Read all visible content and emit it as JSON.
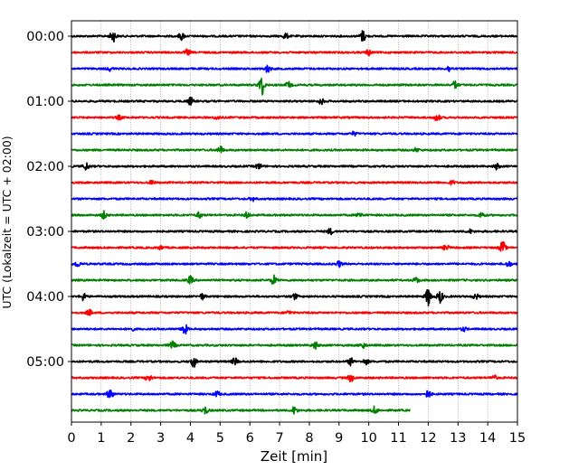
{
  "chart_data": {
    "type": "line",
    "title": "",
    "xlabel": "Zeit  [min]",
    "ylabel": "UTC (Lokalzeit = UTC + 02:00)",
    "xlim": [
      0,
      15
    ],
    "x_ticks": [
      0,
      1,
      2,
      3,
      4,
      5,
      6,
      7,
      8,
      9,
      10,
      11,
      12,
      13,
      14,
      15
    ],
    "y_tick_labels": [
      "00:00",
      "01:00",
      "02:00",
      "03:00",
      "04:00",
      "05:00"
    ],
    "trace_interval_min": 15,
    "grid": "vertical-dotted",
    "colors": [
      "#000000",
      "#ff0000",
      "#0000ff",
      "#008000"
    ],
    "series": [
      {
        "start": "00:00",
        "color": "#000000",
        "end_min": 15,
        "events": [
          {
            "t": 1.4,
            "a": 6
          },
          {
            "t": 3.7,
            "a": 4
          },
          {
            "t": 7.2,
            "a": 3
          },
          {
            "t": 9.8,
            "a": 6
          }
        ]
      },
      {
        "start": "00:15",
        "color": "#ff0000",
        "end_min": 15,
        "events": [
          {
            "t": 3.9,
            "a": 3
          },
          {
            "t": 10.0,
            "a": 3
          }
        ]
      },
      {
        "start": "00:30",
        "color": "#0000ff",
        "end_min": 15,
        "events": [
          {
            "t": 1.3,
            "a": 2
          },
          {
            "t": 6.6,
            "a": 4
          },
          {
            "t": 12.7,
            "a": 3
          }
        ]
      },
      {
        "start": "00:45",
        "color": "#008000",
        "end_min": 15,
        "events": [
          {
            "t": 6.4,
            "a": 11
          },
          {
            "t": 7.3,
            "a": 3
          },
          {
            "t": 12.9,
            "a": 4
          }
        ]
      },
      {
        "start": "01:00",
        "color": "#000000",
        "end_min": 15,
        "events": [
          {
            "t": 4.0,
            "a": 4
          },
          {
            "t": 8.4,
            "a": 3
          }
        ]
      },
      {
        "start": "01:15",
        "color": "#ff0000",
        "end_min": 15,
        "events": [
          {
            "t": 1.6,
            "a": 2
          },
          {
            "t": 4.9,
            "a": 2
          },
          {
            "t": 12.3,
            "a": 4
          }
        ]
      },
      {
        "start": "01:30",
        "color": "#0000ff",
        "end_min": 15,
        "events": [
          {
            "t": 9.5,
            "a": 2
          }
        ]
      },
      {
        "start": "01:45",
        "color": "#008000",
        "end_min": 15,
        "events": [
          {
            "t": 5.0,
            "a": 4
          },
          {
            "t": 11.6,
            "a": 2
          }
        ]
      },
      {
        "start": "02:00",
        "color": "#000000",
        "end_min": 15,
        "events": [
          {
            "t": 0.5,
            "a": 4
          },
          {
            "t": 6.3,
            "a": 3
          },
          {
            "t": 14.3,
            "a": 3
          }
        ]
      },
      {
        "start": "02:15",
        "color": "#ff0000",
        "end_min": 15,
        "events": [
          {
            "t": 2.7,
            "a": 2
          },
          {
            "t": 12.8,
            "a": 2
          }
        ]
      },
      {
        "start": "02:30",
        "color": "#0000ff",
        "end_min": 15,
        "events": [
          {
            "t": 6.1,
            "a": 2
          }
        ]
      },
      {
        "start": "02:45",
        "color": "#008000",
        "end_min": 15,
        "events": [
          {
            "t": 1.1,
            "a": 4
          },
          {
            "t": 4.3,
            "a": 3
          },
          {
            "t": 5.9,
            "a": 3
          },
          {
            "t": 9.7,
            "a": 3
          },
          {
            "t": 13.8,
            "a": 3
          }
        ]
      },
      {
        "start": "03:00",
        "color": "#000000",
        "end_min": 15,
        "events": [
          {
            "t": 8.7,
            "a": 3
          },
          {
            "t": 13.4,
            "a": 2
          }
        ]
      },
      {
        "start": "03:15",
        "color": "#ff0000",
        "end_min": 15,
        "events": [
          {
            "t": 3.0,
            "a": 2
          },
          {
            "t": 12.6,
            "a": 3
          },
          {
            "t": 14.5,
            "a": 7
          }
        ]
      },
      {
        "start": "03:30",
        "color": "#0000ff",
        "end_min": 15,
        "events": [
          {
            "t": 0.2,
            "a": 3
          },
          {
            "t": 9.0,
            "a": 3
          },
          {
            "t": 14.7,
            "a": 3
          }
        ]
      },
      {
        "start": "03:45",
        "color": "#008000",
        "end_min": 15,
        "events": [
          {
            "t": 4.0,
            "a": 4
          },
          {
            "t": 6.8,
            "a": 5
          },
          {
            "t": 11.6,
            "a": 3
          }
        ]
      },
      {
        "start": "04:00",
        "color": "#000000",
        "end_min": 15,
        "events": [
          {
            "t": 0.4,
            "a": 4
          },
          {
            "t": 4.4,
            "a": 3
          },
          {
            "t": 7.5,
            "a": 3
          },
          {
            "t": 12.0,
            "a": 10
          },
          {
            "t": 12.4,
            "a": 7
          },
          {
            "t": 13.6,
            "a": 3
          }
        ]
      },
      {
        "start": "04:15",
        "color": "#ff0000",
        "end_min": 15,
        "events": [
          {
            "t": 0.6,
            "a": 3
          },
          {
            "t": 7.3,
            "a": 2
          }
        ]
      },
      {
        "start": "04:30",
        "color": "#0000ff",
        "end_min": 15,
        "events": [
          {
            "t": 2.0,
            "a": 2
          },
          {
            "t": 3.8,
            "a": 6
          },
          {
            "t": 13.2,
            "a": 2
          }
        ]
      },
      {
        "start": "04:45",
        "color": "#008000",
        "end_min": 15,
        "events": [
          {
            "t": 3.4,
            "a": 4
          },
          {
            "t": 8.2,
            "a": 4
          },
          {
            "t": 9.8,
            "a": 3
          }
        ]
      },
      {
        "start": "05:00",
        "color": "#000000",
        "end_min": 15,
        "events": [
          {
            "t": 4.1,
            "a": 6
          },
          {
            "t": 5.5,
            "a": 4
          },
          {
            "t": 9.4,
            "a": 4
          },
          {
            "t": 9.9,
            "a": 3
          }
        ]
      },
      {
        "start": "05:15",
        "color": "#ff0000",
        "end_min": 15,
        "events": [
          {
            "t": 2.6,
            "a": 4
          },
          {
            "t": 9.4,
            "a": 4
          },
          {
            "t": 14.2,
            "a": 3
          }
        ]
      },
      {
        "start": "05:30",
        "color": "#0000ff",
        "end_min": 15,
        "events": [
          {
            "t": 1.3,
            "a": 6
          },
          {
            "t": 4.9,
            "a": 3
          },
          {
            "t": 12.0,
            "a": 4
          }
        ]
      },
      {
        "start": "05:45",
        "color": "#008000",
        "end_min": 11.4,
        "events": [
          {
            "t": 4.5,
            "a": 4
          },
          {
            "t": 7.5,
            "a": 4
          },
          {
            "t": 10.2,
            "a": 4
          }
        ]
      }
    ]
  }
}
